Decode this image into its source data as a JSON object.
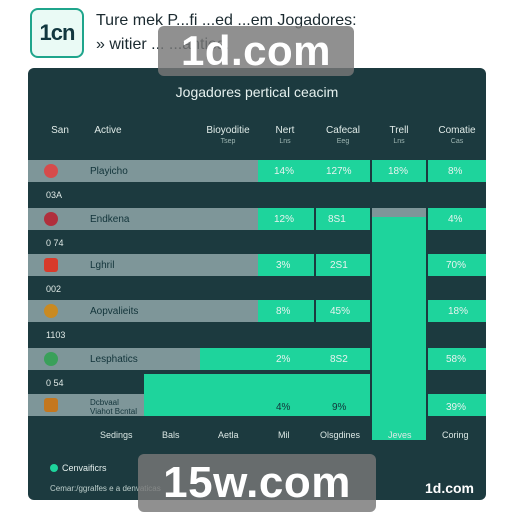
{
  "header": {
    "logo": "1cn",
    "line1": "Ture mek P...fi  ...ed  ...em Jogadores:",
    "line2": "» witier ...  ...anties."
  },
  "watermarks": {
    "top": "1d.com",
    "bottom": "15w.com"
  },
  "panel": {
    "title": "Jogadores pertical ceacim",
    "columns": [
      {
        "label": "San",
        "sub": ""
      },
      {
        "label": "Active",
        "sub": ""
      },
      {
        "label": "Bioyoditie",
        "sub": "Tsep"
      },
      {
        "label": "Nert",
        "sub": "Lns"
      },
      {
        "label": "Cafecal",
        "sub": "Eeg"
      },
      {
        "label": "Trell",
        "sub": "Lns"
      },
      {
        "label": "Comatie",
        "sub": "Cas"
      }
    ],
    "rows": [
      {
        "icon_color": "#d64b4b",
        "name": "Playicho",
        "id": "03A",
        "v1": "14%",
        "v2": "127%",
        "v3": "18%",
        "v4": "8%"
      },
      {
        "icon_color": "#b02f3c",
        "name": "Endkena",
        "id": "0 74",
        "v1": "12%",
        "v2": "8S1",
        "v3": "",
        "v4": "4%"
      },
      {
        "icon_color": "#d83a2a",
        "name": "Lghril",
        "id": "002",
        "v1": "3%",
        "v2": "2S1",
        "v3": "",
        "v4": "70%"
      },
      {
        "icon_color": "#c98a22",
        "name": "Aopvalieits",
        "id": "1103",
        "v1": "8%",
        "v2": "45%",
        "v3": "",
        "v4": "18%"
      },
      {
        "icon_color": "#3aa05a",
        "name": "Lesphatics",
        "id": "0 54",
        "v1": "2%",
        "v2": "8S2",
        "v3": "",
        "v4": "58%"
      },
      {
        "icon_color": "#c4771e",
        "name": "Dcbvaal Viahot Bcntal",
        "id": "",
        "v1": "4%",
        "v2": "9%",
        "v3": "",
        "v4": "39%"
      }
    ],
    "footer": [
      "Sedings",
      "Bals",
      "Aetla",
      "Mil",
      "Olsgdines",
      "Jeves",
      "Coring"
    ],
    "legend": "Cenvaificrs",
    "note": "Cemar:/ggralfes e a denvaticas",
    "brand": "1d.com"
  },
  "colors": {
    "panel_bg": "#1c3a3f",
    "accent": "#1ed49c",
    "row_grey": "#7e9699"
  }
}
